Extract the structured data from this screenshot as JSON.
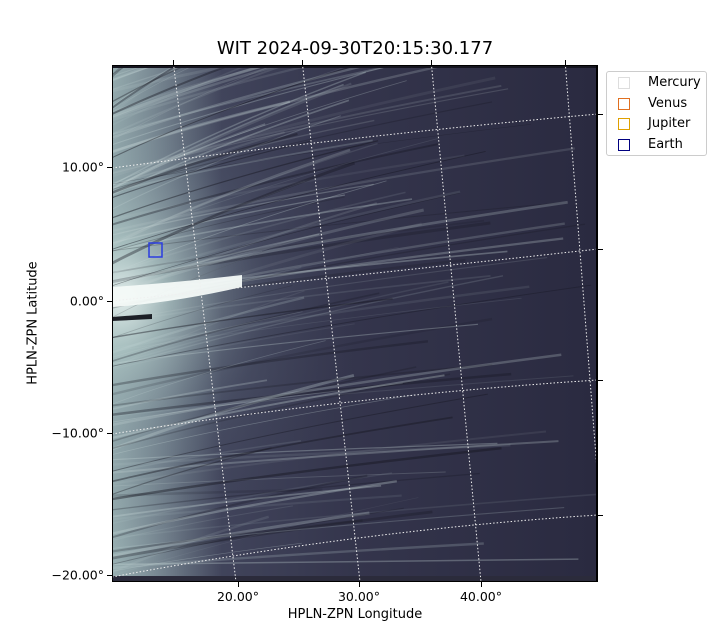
{
  "figure": {
    "title": "WIT 2024-09-30T20:15:30.177",
    "xlabel": "HPLN-ZPN Longitude",
    "ylabel": "HPLN-ZPN Latitude",
    "yticks": [
      "10.00°",
      "0.00°",
      "−10.00°",
      "−20.00°"
    ],
    "xticks": [
      "20.00°",
      "30.00°",
      "40.00°"
    ]
  },
  "legend": {
    "items": [
      {
        "label": "Mercury",
        "color": "#dddddd"
      },
      {
        "label": "Venus",
        "color": "#e07020"
      },
      {
        "label": "Jupiter",
        "color": "#e0a000"
      },
      {
        "label": "Earth",
        "color": "#000080"
      }
    ]
  },
  "markers": {
    "earth_color": "#2a3de0"
  },
  "colors": {
    "background_dark": "#2e2f45",
    "streamer": "#cfe3e0"
  }
}
